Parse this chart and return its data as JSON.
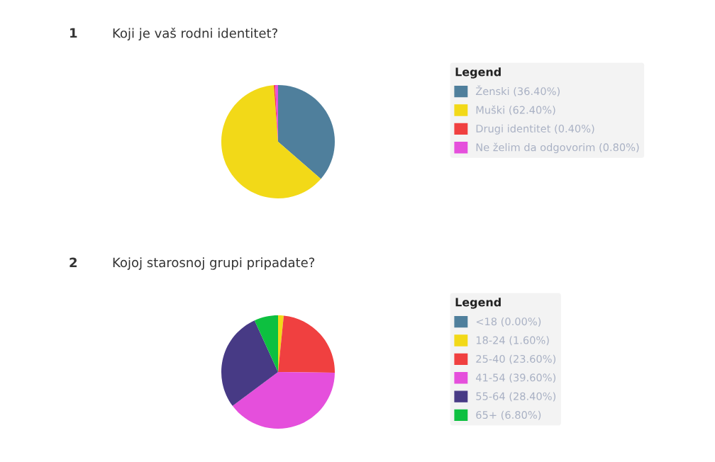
{
  "chart_data": [
    {
      "type": "pie",
      "title": "Koji je vaš rodni identitet?",
      "annotations": [
        "1"
      ],
      "legend_title": "Legend",
      "legend": "right",
      "categories": [
        "Ženski (36.40%)",
        "Muški (62.40%)",
        "Drugi identitet (0.40%)",
        "Ne želim da odgovorim (0.80%)"
      ],
      "values": [
        36.4,
        62.4,
        0.4,
        0.8
      ],
      "colors": [
        "#4f7f9c",
        "#f2d918",
        "#f04040",
        "#e54fdc"
      ]
    },
    {
      "type": "pie",
      "title": "Kojoj starosnoj grupi pripadate?",
      "annotations": [
        "2"
      ],
      "legend_title": "Legend",
      "legend": "right",
      "categories": [
        "<18 (0.00%)",
        "18-24 (1.60%)",
        "25-40 (23.60%)",
        "41-54 (39.60%)",
        "55-64 (28.40%)",
        "65+ (6.80%)"
      ],
      "values": [
        0.0,
        1.6,
        23.6,
        39.6,
        28.4,
        6.8
      ],
      "colors": [
        "#4f7f9c",
        "#f2d918",
        "#f04040",
        "#e54fdc",
        "#473a85",
        "#0dc040"
      ]
    }
  ]
}
